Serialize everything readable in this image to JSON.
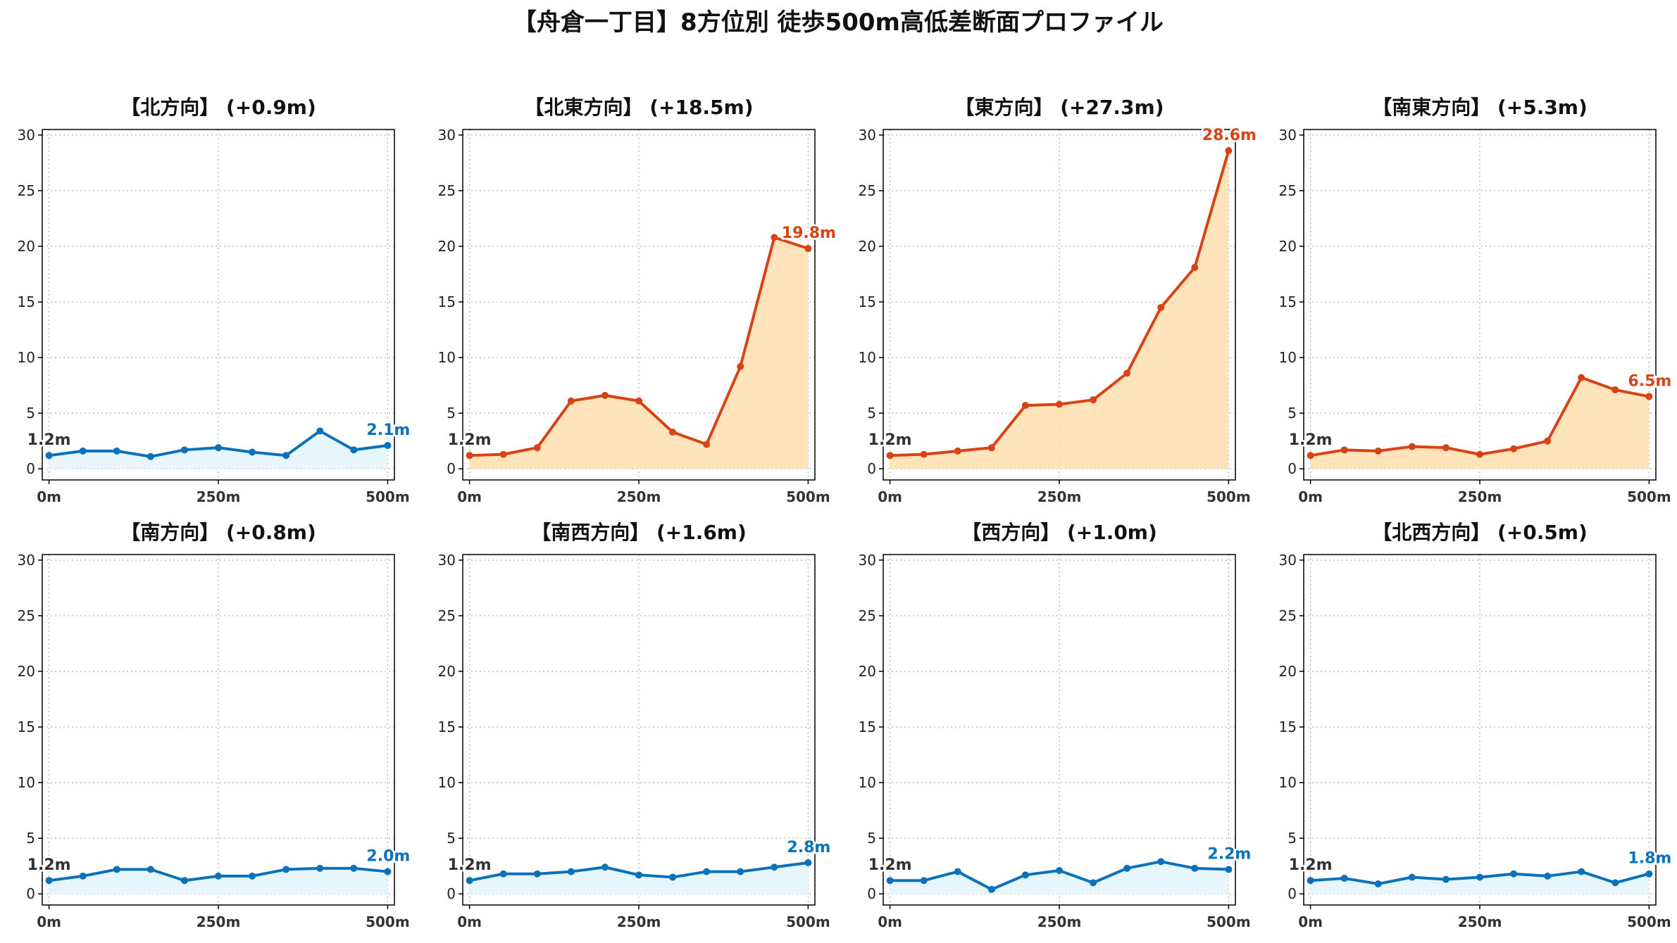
{
  "figure": {
    "title": "【舟倉一丁目】8方位別 徒歩500m高低差断面プロファイル"
  },
  "colors": {
    "up_line": "#d84315",
    "up_fill": "#ffe0b2",
    "flat_line": "#0a72ba",
    "flat_fill": "#e3f5fc",
    "start_label": "#333333",
    "grid": "#b0b0b0",
    "axis": "#000000"
  },
  "chart_data": [
    {
      "type": "line",
      "title": "【北方向】 (+0.9m)",
      "tone": "flat",
      "x": [
        0,
        50,
        100,
        150,
        200,
        250,
        300,
        350,
        400,
        450,
        500
      ],
      "values": [
        1.2,
        1.6,
        1.6,
        1.1,
        1.7,
        1.9,
        1.5,
        1.2,
        3.4,
        1.7,
        2.1
      ],
      "xticks": [
        0,
        250,
        500
      ],
      "xtick_labels": [
        "0m",
        "250m",
        "500m"
      ],
      "yticks": [
        0,
        5,
        10,
        15,
        20,
        25,
        30
      ],
      "ylim": [
        -1,
        30.5
      ],
      "xlim": [
        -10,
        510
      ],
      "start_label": "1.2m",
      "end_label": "2.1m",
      "grid": true
    },
    {
      "type": "line",
      "title": "【北東方向】 (+18.5m)",
      "tone": "up",
      "x": [
        0,
        50,
        100,
        150,
        200,
        250,
        300,
        350,
        400,
        450,
        500
      ],
      "values": [
        1.2,
        1.3,
        1.9,
        6.1,
        6.6,
        6.1,
        3.3,
        2.2,
        9.2,
        20.8,
        19.8
      ],
      "xticks": [
        0,
        250,
        500
      ],
      "xtick_labels": [
        "0m",
        "250m",
        "500m"
      ],
      "yticks": [
        0,
        5,
        10,
        15,
        20,
        25,
        30
      ],
      "ylim": [
        -1,
        30.5
      ],
      "xlim": [
        -10,
        510
      ],
      "start_label": "1.2m",
      "end_label": "19.8m",
      "grid": true
    },
    {
      "type": "line",
      "title": "【東方向】 (+27.3m)",
      "tone": "up",
      "x": [
        0,
        50,
        100,
        150,
        200,
        250,
        300,
        350,
        400,
        450,
        500
      ],
      "values": [
        1.2,
        1.3,
        1.6,
        1.9,
        5.7,
        5.8,
        6.2,
        8.6,
        14.5,
        18.1,
        28.6
      ],
      "xticks": [
        0,
        250,
        500
      ],
      "xtick_labels": [
        "0m",
        "250m",
        "500m"
      ],
      "yticks": [
        0,
        5,
        10,
        15,
        20,
        25,
        30
      ],
      "ylim": [
        -1,
        30.5
      ],
      "xlim": [
        -10,
        510
      ],
      "start_label": "1.2m",
      "end_label": "28.6m",
      "grid": true
    },
    {
      "type": "line",
      "title": "【南東方向】 (+5.3m)",
      "tone": "up",
      "x": [
        0,
        50,
        100,
        150,
        200,
        250,
        300,
        350,
        400,
        450,
        500
      ],
      "values": [
        1.2,
        1.7,
        1.6,
        2.0,
        1.9,
        1.3,
        1.8,
        2.5,
        8.2,
        7.1,
        6.5
      ],
      "xticks": [
        0,
        250,
        500
      ],
      "xtick_labels": [
        "0m",
        "250m",
        "500m"
      ],
      "yticks": [
        0,
        5,
        10,
        15,
        20,
        25,
        30
      ],
      "ylim": [
        -1,
        30.5
      ],
      "xlim": [
        -10,
        510
      ],
      "start_label": "1.2m",
      "end_label": "6.5m",
      "grid": true
    },
    {
      "type": "line",
      "title": "【南方向】 (+0.8m)",
      "tone": "flat",
      "x": [
        0,
        50,
        100,
        150,
        200,
        250,
        300,
        350,
        400,
        450,
        500
      ],
      "values": [
        1.2,
        1.6,
        2.2,
        2.2,
        1.2,
        1.6,
        1.6,
        2.2,
        2.3,
        2.3,
        2.0
      ],
      "xticks": [
        0,
        250,
        500
      ],
      "xtick_labels": [
        "0m",
        "250m",
        "500m"
      ],
      "yticks": [
        0,
        5,
        10,
        15,
        20,
        25,
        30
      ],
      "ylim": [
        -1,
        30.5
      ],
      "xlim": [
        -10,
        510
      ],
      "start_label": "1.2m",
      "end_label": "2.0m",
      "grid": true
    },
    {
      "type": "line",
      "title": "【南西方向】 (+1.6m)",
      "tone": "flat",
      "x": [
        0,
        50,
        100,
        150,
        200,
        250,
        300,
        350,
        400,
        450,
        500
      ],
      "values": [
        1.2,
        1.8,
        1.8,
        2.0,
        2.4,
        1.7,
        1.5,
        2.0,
        2.0,
        2.4,
        2.8
      ],
      "xticks": [
        0,
        250,
        500
      ],
      "xtick_labels": [
        "0m",
        "250m",
        "500m"
      ],
      "yticks": [
        0,
        5,
        10,
        15,
        20,
        25,
        30
      ],
      "ylim": [
        -1,
        30.5
      ],
      "xlim": [
        -10,
        510
      ],
      "start_label": "1.2m",
      "end_label": "2.8m",
      "grid": true
    },
    {
      "type": "line",
      "title": "【西方向】 (+1.0m)",
      "tone": "flat",
      "x": [
        0,
        50,
        100,
        150,
        200,
        250,
        300,
        350,
        400,
        450,
        500
      ],
      "values": [
        1.2,
        1.2,
        2.0,
        0.4,
        1.7,
        2.1,
        1.0,
        2.3,
        2.9,
        2.3,
        2.2
      ],
      "xticks": [
        0,
        250,
        500
      ],
      "xtick_labels": [
        "0m",
        "250m",
        "500m"
      ],
      "yticks": [
        0,
        5,
        10,
        15,
        20,
        25,
        30
      ],
      "ylim": [
        -1,
        30.5
      ],
      "xlim": [
        -10,
        510
      ],
      "start_label": "1.2m",
      "end_label": "2.2m",
      "grid": true
    },
    {
      "type": "line",
      "title": "【北西方向】 (+0.5m)",
      "tone": "flat",
      "x": [
        0,
        50,
        100,
        150,
        200,
        250,
        300,
        350,
        400,
        450,
        500
      ],
      "values": [
        1.2,
        1.4,
        0.9,
        1.5,
        1.3,
        1.5,
        1.8,
        1.6,
        2.0,
        1.0,
        1.8
      ],
      "xticks": [
        0,
        250,
        500
      ],
      "xtick_labels": [
        "0m",
        "250m",
        "500m"
      ],
      "yticks": [
        0,
        5,
        10,
        15,
        20,
        25,
        30
      ],
      "ylim": [
        -1,
        30.5
      ],
      "xlim": [
        -10,
        510
      ],
      "start_label": "1.2m",
      "end_label": "1.8m",
      "grid": true
    }
  ]
}
